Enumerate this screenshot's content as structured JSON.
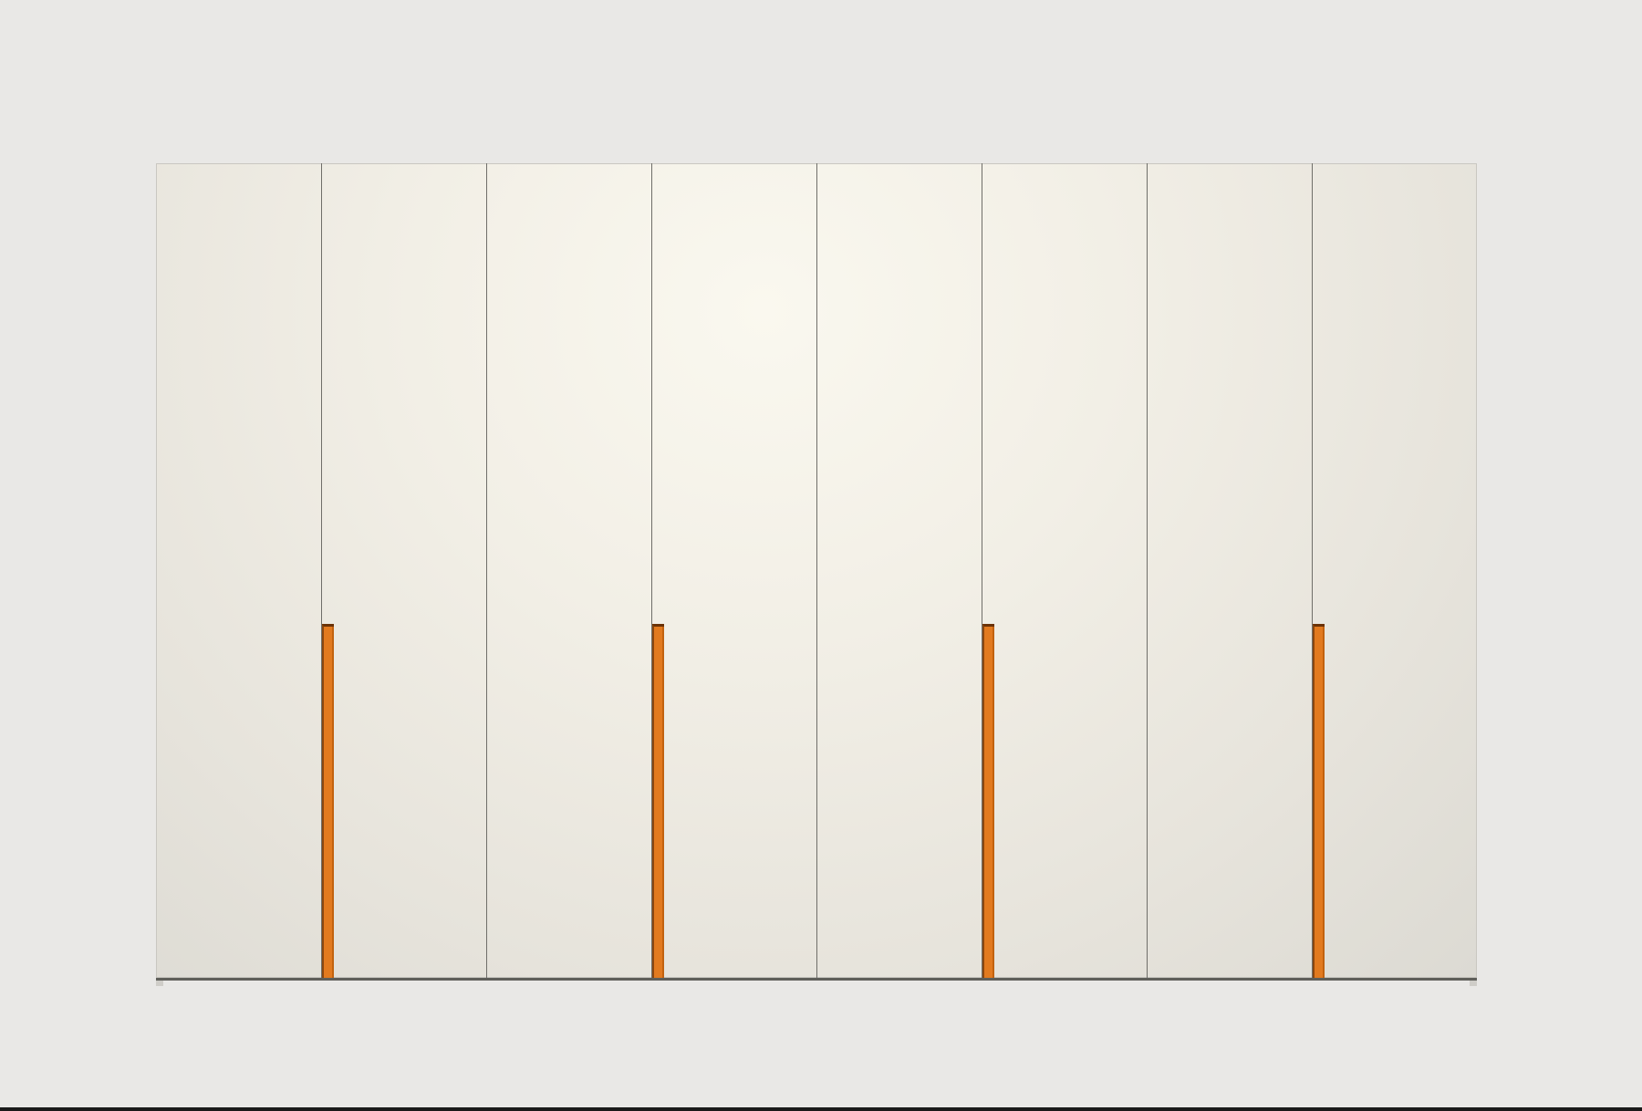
{
  "scene": {
    "subject": "wardrobe-front-elevation",
    "door_count": 8,
    "handle_count": 4,
    "colors": {
      "background": "#e9e8e6",
      "door_finish": "#f2efe6",
      "door_seam": "#6f6e69",
      "handle_accent": "#e27a1f",
      "plinth": "#5f5f5a"
    }
  }
}
